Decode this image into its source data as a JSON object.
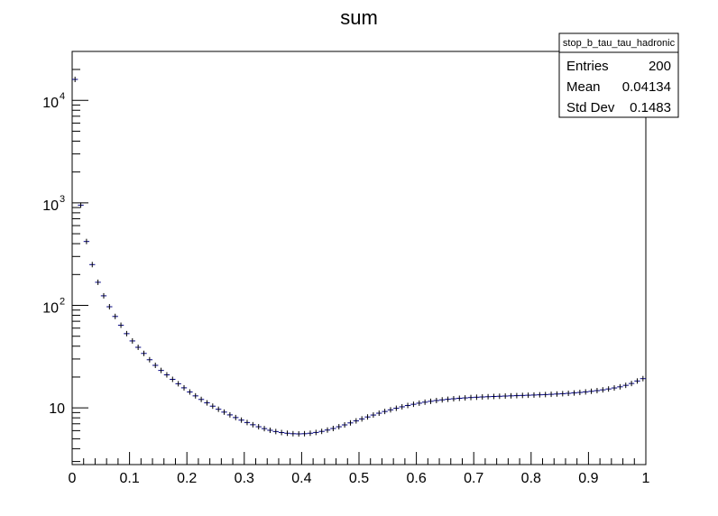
{
  "chart_data": {
    "type": "scatter",
    "title": "sum",
    "xlabel": "",
    "ylabel": "",
    "xlim": [
      0,
      1
    ],
    "ylim": [
      2.8,
      30000
    ],
    "y_scale": "log",
    "grid": false,
    "x_ticks": [
      {
        "value": 0,
        "label": "0"
      },
      {
        "value": 0.1,
        "label": "0.1"
      },
      {
        "value": 0.2,
        "label": "0.2"
      },
      {
        "value": 0.3,
        "label": "0.3"
      },
      {
        "value": 0.4,
        "label": "0.4"
      },
      {
        "value": 0.5,
        "label": "0.5"
      },
      {
        "value": 0.6,
        "label": "0.6"
      },
      {
        "value": 0.7,
        "label": "0.7"
      },
      {
        "value": 0.8,
        "label": "0.8"
      },
      {
        "value": 0.9,
        "label": "0.9"
      },
      {
        "value": 1,
        "label": "1"
      }
    ],
    "y_ticks": [
      {
        "value": 10,
        "base": "10",
        "exp": ""
      },
      {
        "value": 100,
        "base": "10",
        "exp": "2"
      },
      {
        "value": 1000,
        "base": "10",
        "exp": "3"
      },
      {
        "value": 10000,
        "base": "10",
        "exp": "4"
      }
    ],
    "series": [
      {
        "color": "#000080",
        "bin_width": 0.01,
        "x": [
          0.005,
          0.015,
          0.025,
          0.035,
          0.045,
          0.055,
          0.065,
          0.075,
          0.085,
          0.095,
          0.105,
          0.115,
          0.125,
          0.135,
          0.145,
          0.155,
          0.165,
          0.175,
          0.185,
          0.195,
          0.205,
          0.215,
          0.225,
          0.235,
          0.245,
          0.255,
          0.265,
          0.275,
          0.285,
          0.295,
          0.305,
          0.315,
          0.325,
          0.335,
          0.345,
          0.355,
          0.365,
          0.375,
          0.385,
          0.395,
          0.405,
          0.415,
          0.425,
          0.435,
          0.445,
          0.455,
          0.465,
          0.475,
          0.485,
          0.495,
          0.505,
          0.515,
          0.525,
          0.535,
          0.545,
          0.555,
          0.565,
          0.575,
          0.585,
          0.595,
          0.605,
          0.615,
          0.625,
          0.635,
          0.645,
          0.655,
          0.665,
          0.675,
          0.685,
          0.695,
          0.705,
          0.715,
          0.725,
          0.735,
          0.745,
          0.755,
          0.765,
          0.775,
          0.785,
          0.795,
          0.805,
          0.815,
          0.825,
          0.835,
          0.845,
          0.855,
          0.865,
          0.875,
          0.885,
          0.895,
          0.905,
          0.915,
          0.925,
          0.935,
          0.945,
          0.955,
          0.965,
          0.975,
          0.985,
          0.995
        ],
        "y": [
          16000,
          950,
          420,
          250,
          168,
          124,
          97,
          78,
          64,
          53,
          45,
          39,
          34,
          29.5,
          26,
          23.2,
          21,
          19,
          17.2,
          15.7,
          14.3,
          13.1,
          12.1,
          11.2,
          10.4,
          9.7,
          9.1,
          8.55,
          8.05,
          7.6,
          7.2,
          6.85,
          6.55,
          6.28,
          6.05,
          5.88,
          5.75,
          5.66,
          5.6,
          5.58,
          5.6,
          5.66,
          5.76,
          5.9,
          6.08,
          6.3,
          6.55,
          6.83,
          7.14,
          7.47,
          7.81,
          8.16,
          8.52,
          8.88,
          9.23,
          9.58,
          9.92,
          10.25,
          10.56,
          10.85,
          11.12,
          11.37,
          11.6,
          11.8,
          11.98,
          12.14,
          12.28,
          12.41,
          12.52,
          12.62,
          12.71,
          12.79,
          12.86,
          12.93,
          12.99,
          13.05,
          13.11,
          13.17,
          13.23,
          13.29,
          13.35,
          13.42,
          13.49,
          13.57,
          13.66,
          13.76,
          13.87,
          14,
          14.15,
          14.32,
          14.52,
          14.74,
          15,
          15.3,
          15.65,
          16.05,
          16.6,
          17.3,
          18.3,
          19.3
        ]
      }
    ]
  },
  "stats_box": {
    "name": "stop_b_tau_tau_hadronic",
    "rows": [
      {
        "label": "Entries",
        "value": "200"
      },
      {
        "label": "Mean",
        "value": "0.04134"
      },
      {
        "label": "Std Dev",
        "value": "0.1483"
      }
    ]
  }
}
